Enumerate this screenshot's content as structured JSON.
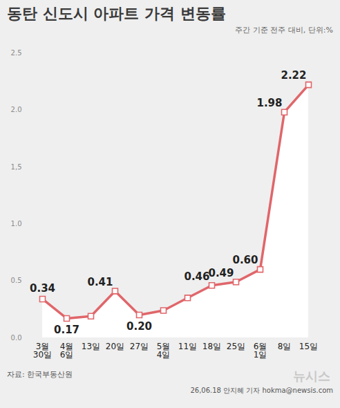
{
  "chart_data": {
    "type": "line",
    "title": "동탄 신도시 아파트 가격 변동률",
    "subtitle": "주간 기준 전주 대비, 단위:%",
    "source": "자료: 한국부동산원",
    "credit": "26,06.18 안지혜 기자 hokma@newsis.com",
    "logo": "뉴시스",
    "categories": [
      "3월 30일",
      "4월 6일",
      "13일",
      "20일",
      "27일",
      "5월 4일",
      "11일",
      "18일",
      "25일",
      "6월 1일",
      "8일",
      "15일"
    ],
    "values": [
      0.34,
      0.17,
      0.19,
      0.41,
      0.2,
      0.24,
      0.35,
      0.46,
      0.49,
      0.6,
      1.98,
      2.22
    ],
    "value_labels": [
      "0.34",
      "0.17",
      null,
      "0.41",
      "0.20",
      null,
      null,
      "0.46",
      "0.49",
      "0.60",
      "1.98",
      "2.22"
    ],
    "data_labels": true,
    "color": "#e0666a",
    "marker": "square",
    "ylim": [
      0,
      2.5
    ],
    "yticks": [
      {
        "value": 0,
        "label": "0.0"
      },
      {
        "value": 0.5,
        "label": "0.5"
      },
      {
        "value": 1,
        "label": "1.0"
      },
      {
        "value": 1.5,
        "label": "1,5"
      },
      {
        "value": 2,
        "label": "2.0"
      },
      {
        "value": 2.5,
        "label": "2.5"
      }
    ],
    "grid": false
  }
}
